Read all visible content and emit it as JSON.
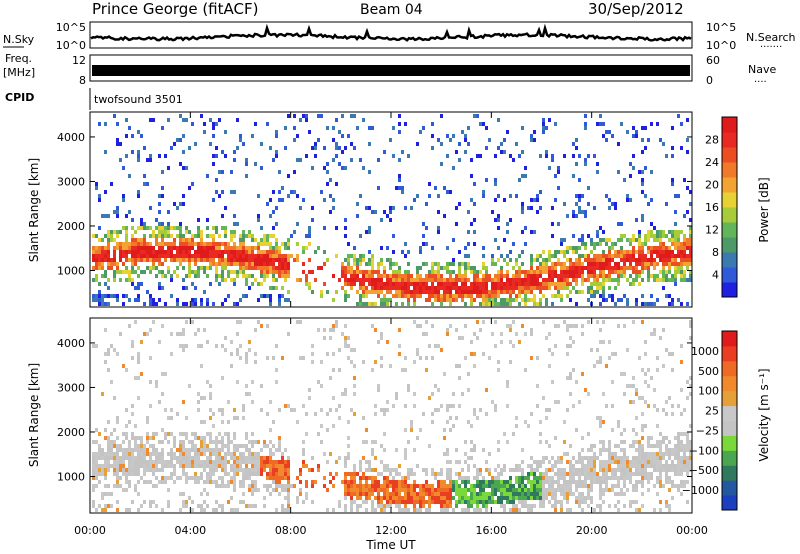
{
  "header": {
    "station": "Prince George (fitACF)",
    "beam": "Beam 04",
    "date": "30/Sep/2012"
  },
  "panels": {
    "nsky": {
      "label": "N.Sky",
      "left_ticks": [
        "10^5",
        "10^0"
      ],
      "right_ticks": [
        "10^5",
        "10^0"
      ],
      "right_label": "N.Search",
      "right_sub": "......."
    },
    "freq": {
      "label_top": "Freq.",
      "label_unit": "[MHz]",
      "left_ticks": [
        "12",
        "8"
      ],
      "right_ticks": [
        "60",
        "0"
      ],
      "right_label": "Nave",
      "right_sub": "...."
    },
    "cpid": {
      "label": "CPID",
      "value": "twofsound 3501"
    }
  },
  "colors": {
    "power": [
      "#2020e0",
      "#2f5bd8",
      "#3a7ab0",
      "#4d9a68",
      "#63b55a",
      "#a6cc3a",
      "#e6d235",
      "#f2a331",
      "#f07a2a",
      "#ec4e24",
      "#e82a22",
      "#e01b1b"
    ],
    "velocity": [
      "#1b3fbf",
      "#23579f",
      "#2f7a5f",
      "#4aa64f",
      "#7bd83a",
      "#c4c4c4",
      "#c8c8c8",
      "#e6a03a",
      "#f08a2d",
      "#ef6a25",
      "#ea3e22",
      "#e01b1b"
    ]
  },
  "chart_data": [
    {
      "type": "heatmap",
      "name": "Power",
      "xlabel": "",
      "ylabel": "Slant Range [km]",
      "x_ticks": [
        "00:00",
        "04:00",
        "08:00",
        "12:00",
        "16:00",
        "20:00",
        "00:00"
      ],
      "y_ticks": [
        "1000",
        "2000",
        "3000",
        "4000"
      ],
      "xlim": [
        0,
        24
      ],
      "ylim": [
        180,
        4560
      ],
      "colorbar_label": "Power [dB]",
      "colorbar_ticks": [
        "4",
        "8",
        "12",
        "16",
        "20",
        "24",
        "28"
      ],
      "zlim": [
        0,
        32
      ]
    },
    {
      "type": "heatmap",
      "name": "Velocity",
      "xlabel": "Time UT",
      "ylabel": "Slant Range [km]",
      "x_ticks": [
        "00:00",
        "04:00",
        "08:00",
        "12:00",
        "16:00",
        "20:00",
        "00:00"
      ],
      "y_ticks": [
        "1000",
        "2000",
        "3000",
        "4000"
      ],
      "xlim": [
        0,
        24
      ],
      "ylim": [
        180,
        4560
      ],
      "colorbar_label": "Velocity [m s⁻¹]",
      "colorbar_ticks": [
        "1000",
        "500",
        "100",
        "25",
        "−25",
        "−100",
        "−500",
        "−1000"
      ]
    }
  ]
}
